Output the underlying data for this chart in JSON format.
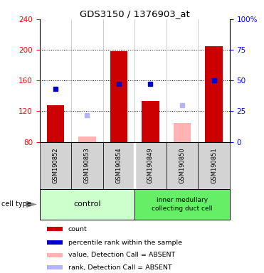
{
  "title": "GDS3150 / 1376903_at",
  "samples": [
    "GSM190852",
    "GSM190853",
    "GSM190854",
    "GSM190849",
    "GSM190850",
    "GSM190851"
  ],
  "ylim_left": [
    80,
    240
  ],
  "ylim_right": [
    0,
    100
  ],
  "yticks_left": [
    80,
    120,
    160,
    200,
    240
  ],
  "yticks_right": [
    0,
    25,
    50,
    75,
    100
  ],
  "ytick_labels_right": [
    "0",
    "25",
    "50",
    "75",
    "100%"
  ],
  "count_values": [
    128,
    null,
    198,
    133,
    null,
    205
  ],
  "count_absent_values": [
    null,
    87,
    null,
    null,
    105,
    null
  ],
  "rank_values": [
    43,
    null,
    47,
    47,
    null,
    50
  ],
  "rank_absent_values": [
    null,
    22,
    null,
    null,
    30,
    null
  ],
  "bar_bottom": 80,
  "bar_width": 0.55,
  "colors": {
    "count": "#cc0000",
    "rank": "#0000cc",
    "count_absent": "#ffb3b3",
    "rank_absent": "#b3b3ff",
    "group_label_bg1": "#ccffcc",
    "group_label_bg2": "#66ee66",
    "sample_bg": "#d3d3d3"
  },
  "legend_labels": [
    "count",
    "percentile rank within the sample",
    "value, Detection Call = ABSENT",
    "rank, Detection Call = ABSENT"
  ],
  "legend_colors": [
    "#cc0000",
    "#0000cc",
    "#ffb3b3",
    "#b3b3ff"
  ]
}
